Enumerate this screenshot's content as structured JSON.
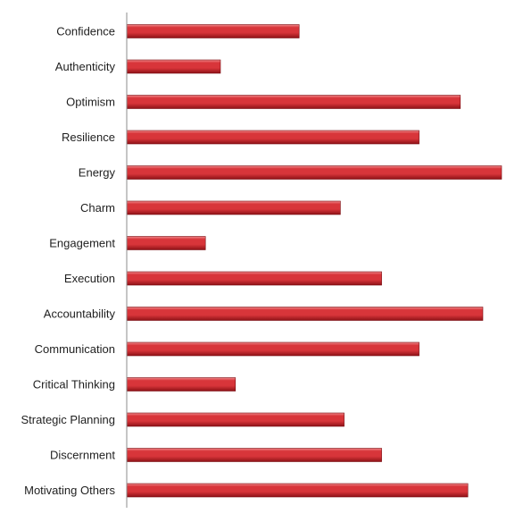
{
  "chart_data": {
    "type": "bar",
    "orientation": "horizontal",
    "title": "",
    "xlabel": "",
    "ylabel": "",
    "grid": false,
    "legend": "none",
    "xlim": [
      0,
      10
    ],
    "categories": [
      "Confidence",
      "Authenticity",
      "Optimism",
      "Resilience",
      "Energy",
      "Charm",
      "Engagement",
      "Execution",
      "Accountability",
      "Communication",
      "Critical Thinking",
      "Strategic Planning",
      "Discernment",
      "Motivating Others"
    ],
    "values": [
      4.6,
      2.5,
      8.9,
      7.8,
      10.0,
      5.7,
      2.1,
      6.8,
      9.5,
      7.8,
      2.9,
      5.8,
      6.8,
      9.1
    ],
    "colors": {
      "bar_top": "#f08a8c",
      "bar_mid": "#d8353a",
      "bar_bottom": "#8e1217"
    }
  }
}
